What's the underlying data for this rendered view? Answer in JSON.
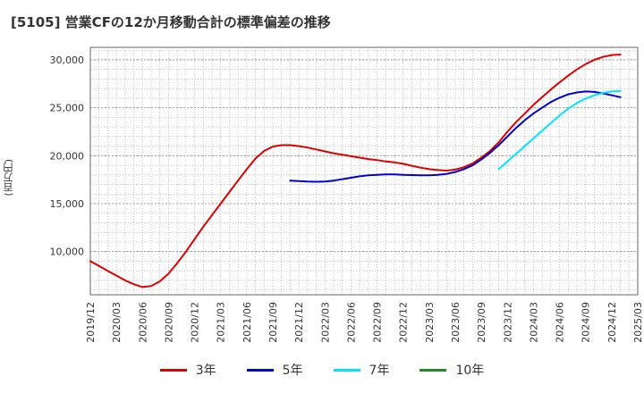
{
  "title": "[5105]  営業CFの12か月移動合計の標準偏差の推移",
  "y_unit_label": "(百万円)",
  "chart_data": {
    "type": "line",
    "title": "[5105]  営業CFの12か月移動合計の標準偏差の推移",
    "ylabel": "(百万円)",
    "xlabel": "",
    "ylim": [
      5500,
      31300
    ],
    "y_ticks": [
      10000,
      15000,
      20000,
      25000,
      30000
    ],
    "y_tick_labels": [
      "10,000",
      "15,000",
      "20,000",
      "25,000",
      "30,000"
    ],
    "x_range": [
      "2019-12",
      "2025-03"
    ],
    "x_tick_labels": [
      "2019/12",
      "2020/03",
      "2020/06",
      "2020/09",
      "2020/12",
      "2021/03",
      "2021/06",
      "2021/09",
      "2021/12",
      "2022/03",
      "2022/06",
      "2022/09",
      "2022/12",
      "2023/03",
      "2023/06",
      "2023/09",
      "2023/12",
      "2024/03",
      "2024/06",
      "2024/09",
      "2024/12",
      "2025/03"
    ],
    "grid": true,
    "legend_position": "bottom",
    "series": [
      {
        "name": "3年",
        "color": "#dd0000",
        "points": [
          [
            "2019-12",
            9000
          ],
          [
            "2020-01",
            8500
          ],
          [
            "2020-02",
            8000
          ],
          [
            "2020-03",
            7500
          ],
          [
            "2020-04",
            7000
          ],
          [
            "2020-05",
            6600
          ],
          [
            "2020-06",
            6300
          ],
          [
            "2020-07",
            6400
          ],
          [
            "2020-08",
            6900
          ],
          [
            "2020-09",
            7700
          ],
          [
            "2020-10",
            8800
          ],
          [
            "2020-11",
            10000
          ],
          [
            "2020-12",
            11300
          ],
          [
            "2021-01",
            12600
          ],
          [
            "2021-02",
            13800
          ],
          [
            "2021-03",
            15000
          ],
          [
            "2021-04",
            16200
          ],
          [
            "2021-05",
            17400
          ],
          [
            "2021-06",
            18600
          ],
          [
            "2021-07",
            19700
          ],
          [
            "2021-08",
            20500
          ],
          [
            "2021-09",
            20950
          ],
          [
            "2021-10",
            21100
          ],
          [
            "2021-11",
            21100
          ],
          [
            "2021-12",
            21000
          ],
          [
            "2022-01",
            20850
          ],
          [
            "2022-02",
            20650
          ],
          [
            "2022-03",
            20450
          ],
          [
            "2022-04",
            20250
          ],
          [
            "2022-05",
            20100
          ],
          [
            "2022-06",
            19950
          ],
          [
            "2022-07",
            19800
          ],
          [
            "2022-08",
            19650
          ],
          [
            "2022-09",
            19550
          ],
          [
            "2022-10",
            19400
          ],
          [
            "2022-11",
            19300
          ],
          [
            "2022-12",
            19150
          ],
          [
            "2023-01",
            18950
          ],
          [
            "2023-02",
            18750
          ],
          [
            "2023-03",
            18600
          ],
          [
            "2023-04",
            18500
          ],
          [
            "2023-05",
            18450
          ],
          [
            "2023-06",
            18550
          ],
          [
            "2023-07",
            18800
          ],
          [
            "2023-08",
            19200
          ],
          [
            "2023-09",
            19800
          ],
          [
            "2023-10",
            20500
          ],
          [
            "2023-11",
            21400
          ],
          [
            "2023-12",
            22500
          ],
          [
            "2024-01",
            23500
          ],
          [
            "2024-02",
            24400
          ],
          [
            "2024-03",
            25300
          ],
          [
            "2024-04",
            26100
          ],
          [
            "2024-05",
            26900
          ],
          [
            "2024-06",
            27650
          ],
          [
            "2024-07",
            28350
          ],
          [
            "2024-08",
            29000
          ],
          [
            "2024-09",
            29550
          ],
          [
            "2024-10",
            30000
          ],
          [
            "2024-11",
            30300
          ],
          [
            "2024-12",
            30500
          ],
          [
            "2025-01",
            30550
          ]
        ]
      },
      {
        "name": "5年",
        "color": "#0000cc",
        "points": [
          [
            "2021-11",
            17400
          ],
          [
            "2021-12",
            17350
          ],
          [
            "2022-01",
            17300
          ],
          [
            "2022-02",
            17280
          ],
          [
            "2022-03",
            17300
          ],
          [
            "2022-04",
            17400
          ],
          [
            "2022-05",
            17550
          ],
          [
            "2022-06",
            17700
          ],
          [
            "2022-07",
            17850
          ],
          [
            "2022-08",
            17950
          ],
          [
            "2022-09",
            18000
          ],
          [
            "2022-10",
            18050
          ],
          [
            "2022-11",
            18050
          ],
          [
            "2022-12",
            18000
          ],
          [
            "2023-01",
            17980
          ],
          [
            "2023-02",
            17950
          ],
          [
            "2023-03",
            17950
          ],
          [
            "2023-04",
            18000
          ],
          [
            "2023-05",
            18100
          ],
          [
            "2023-06",
            18300
          ],
          [
            "2023-07",
            18600
          ],
          [
            "2023-08",
            19000
          ],
          [
            "2023-09",
            19600
          ],
          [
            "2023-10",
            20300
          ],
          [
            "2023-11",
            21100
          ],
          [
            "2023-12",
            22000
          ],
          [
            "2024-01",
            22900
          ],
          [
            "2024-02",
            23700
          ],
          [
            "2024-03",
            24400
          ],
          [
            "2024-04",
            25000
          ],
          [
            "2024-05",
            25600
          ],
          [
            "2024-06",
            26050
          ],
          [
            "2024-07",
            26400
          ],
          [
            "2024-08",
            26600
          ],
          [
            "2024-09",
            26700
          ],
          [
            "2024-10",
            26650
          ],
          [
            "2024-11",
            26500
          ],
          [
            "2024-12",
            26300
          ],
          [
            "2025-01",
            26100
          ]
        ]
      },
      {
        "name": "7年",
        "color": "#00e5ff",
        "points": [
          [
            "2023-11",
            18600
          ],
          [
            "2023-12",
            19400
          ],
          [
            "2024-01",
            20200
          ],
          [
            "2024-02",
            21000
          ],
          [
            "2024-03",
            21800
          ],
          [
            "2024-04",
            22600
          ],
          [
            "2024-05",
            23400
          ],
          [
            "2024-06",
            24200
          ],
          [
            "2024-07",
            24900
          ],
          [
            "2024-08",
            25500
          ],
          [
            "2024-09",
            25950
          ],
          [
            "2024-10",
            26300
          ],
          [
            "2024-11",
            26550
          ],
          [
            "2024-12",
            26700
          ],
          [
            "2025-01",
            26750
          ]
        ]
      },
      {
        "name": "10年",
        "color": "#228b22",
        "points": []
      }
    ]
  }
}
